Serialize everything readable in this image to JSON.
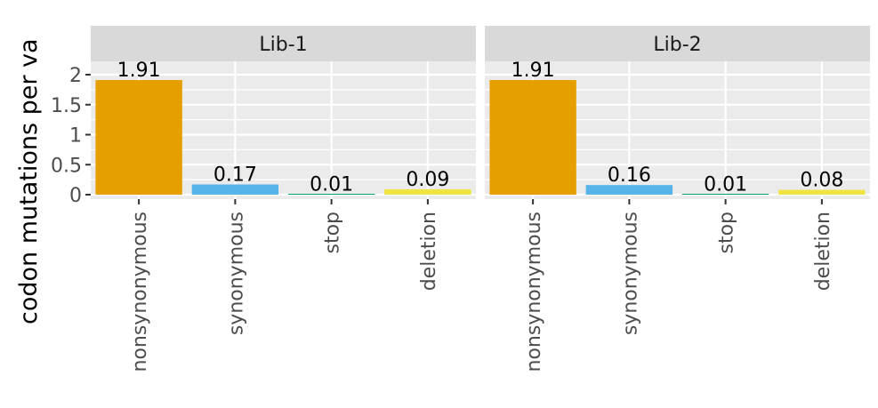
{
  "chart_data": {
    "type": "bar",
    "ylabel": "codon mutations per va",
    "ylim": [
      0,
      2.2
    ],
    "yticks": [
      0,
      0.5,
      1,
      1.5,
      2
    ],
    "ytick_labels": [
      "0",
      "0.5",
      "1",
      "1.5",
      "2"
    ],
    "grid": true,
    "legend": "none",
    "categories": [
      "nonsynonymous",
      "synonymous",
      "stop",
      "deletion"
    ],
    "colors": {
      "nonsynonymous": "#E69F00",
      "synonymous": "#56B4E9",
      "stop": "#009E73",
      "deletion": "#F0E442"
    },
    "panels": [
      {
        "name": "Lib-1",
        "values": [
          1.91,
          0.17,
          0.01,
          0.09
        ],
        "labels": [
          "1.91",
          "0.17",
          "0.01",
          "0.09"
        ]
      },
      {
        "name": "Lib-2",
        "values": [
          1.91,
          0.16,
          0.01,
          0.08
        ],
        "labels": [
          "1.91",
          "0.16",
          "0.01",
          "0.08"
        ]
      }
    ]
  }
}
